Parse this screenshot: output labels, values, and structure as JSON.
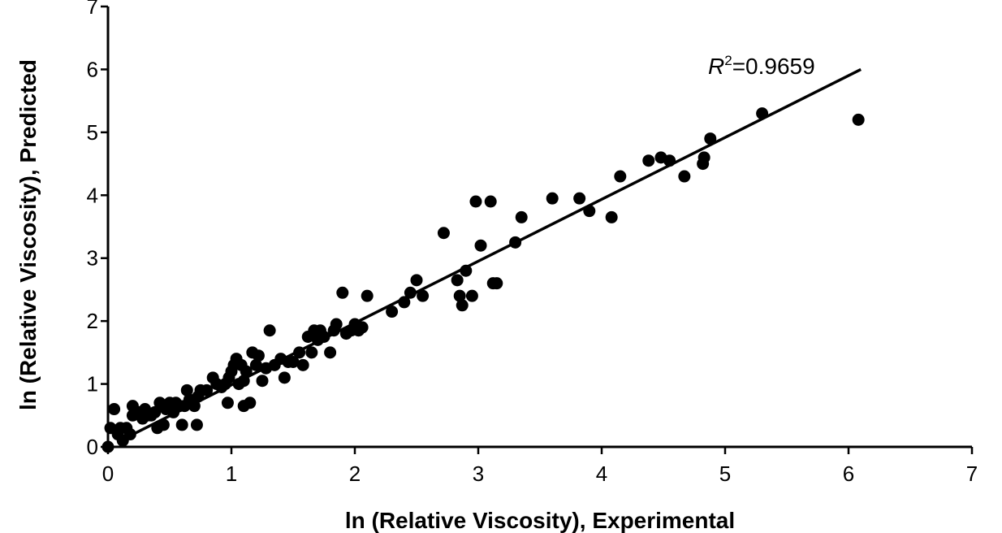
{
  "chart_data": {
    "type": "scatter",
    "xlabel": "ln (Relative Viscosity), Experimental",
    "ylabel": "ln (Relative Viscosity), Predicted",
    "xlim": [
      0,
      7
    ],
    "ylim": [
      0,
      7
    ],
    "xticks": [
      "0",
      "1",
      "2",
      "3",
      "4",
      "5",
      "6",
      "7"
    ],
    "yticks": [
      "0",
      "1",
      "2",
      "3",
      "4",
      "5",
      "6",
      "7"
    ],
    "grid": false,
    "legend": "none",
    "annotation": {
      "r_prefix": "R",
      "r_exp": "2",
      "r_value": "=0.9659"
    },
    "fit_line": {
      "x": [
        0.1,
        6.1
      ],
      "y": [
        0.1,
        6.0
      ]
    },
    "marker_color": "#000000",
    "points": [
      [
        0.0,
        0.0
      ],
      [
        0.02,
        0.3
      ],
      [
        0.05,
        0.6
      ],
      [
        0.08,
        0.2
      ],
      [
        0.1,
        0.3
      ],
      [
        0.12,
        0.1
      ],
      [
        0.15,
        0.3
      ],
      [
        0.18,
        0.2
      ],
      [
        0.2,
        0.5
      ],
      [
        0.2,
        0.65
      ],
      [
        0.25,
        0.55
      ],
      [
        0.28,
        0.45
      ],
      [
        0.3,
        0.6
      ],
      [
        0.32,
        0.5
      ],
      [
        0.35,
        0.5
      ],
      [
        0.38,
        0.55
      ],
      [
        0.4,
        0.3
      ],
      [
        0.42,
        0.7
      ],
      [
        0.45,
        0.35
      ],
      [
        0.47,
        0.6
      ],
      [
        0.5,
        0.7
      ],
      [
        0.53,
        0.55
      ],
      [
        0.55,
        0.7
      ],
      [
        0.58,
        0.65
      ],
      [
        0.6,
        0.35
      ],
      [
        0.62,
        0.65
      ],
      [
        0.64,
        0.9
      ],
      [
        0.66,
        0.75
      ],
      [
        0.7,
        0.65
      ],
      [
        0.72,
        0.35
      ],
      [
        0.73,
        0.8
      ],
      [
        0.75,
        0.9
      ],
      [
        0.8,
        0.9
      ],
      [
        0.85,
        1.1
      ],
      [
        0.88,
        1.0
      ],
      [
        0.92,
        0.95
      ],
      [
        0.95,
        1.0
      ],
      [
        0.97,
        0.7
      ],
      [
        0.98,
        1.1
      ],
      [
        1.0,
        1.2
      ],
      [
        1.02,
        1.3
      ],
      [
        1.04,
        1.4
      ],
      [
        1.06,
        1.0
      ],
      [
        1.08,
        1.3
      ],
      [
        1.1,
        1.05
      ],
      [
        1.1,
        0.65
      ],
      [
        1.12,
        1.2
      ],
      [
        1.15,
        0.7
      ],
      [
        1.17,
        1.5
      ],
      [
        1.2,
        1.3
      ],
      [
        1.22,
        1.45
      ],
      [
        1.25,
        1.05
      ],
      [
        1.28,
        1.25
      ],
      [
        1.31,
        1.85
      ],
      [
        1.35,
        1.3
      ],
      [
        1.4,
        1.4
      ],
      [
        1.43,
        1.1
      ],
      [
        1.46,
        1.35
      ],
      [
        1.5,
        1.35
      ],
      [
        1.55,
        1.5
      ],
      [
        1.58,
        1.3
      ],
      [
        1.62,
        1.75
      ],
      [
        1.65,
        1.5
      ],
      [
        1.67,
        1.85
      ],
      [
        1.7,
        1.7
      ],
      [
        1.72,
        1.85
      ],
      [
        1.75,
        1.75
      ],
      [
        1.8,
        1.5
      ],
      [
        1.83,
        1.85
      ],
      [
        1.85,
        1.95
      ],
      [
        1.9,
        2.45
      ],
      [
        1.93,
        1.8
      ],
      [
        1.97,
        1.85
      ],
      [
        2.0,
        1.95
      ],
      [
        2.03,
        1.85
      ],
      [
        2.06,
        1.9
      ],
      [
        2.1,
        2.4
      ],
      [
        2.3,
        2.15
      ],
      [
        2.4,
        2.3
      ],
      [
        2.45,
        2.45
      ],
      [
        2.5,
        2.65
      ],
      [
        2.55,
        2.4
      ],
      [
        2.72,
        3.4
      ],
      [
        2.83,
        2.65
      ],
      [
        2.85,
        2.4
      ],
      [
        2.87,
        2.25
      ],
      [
        2.9,
        2.8
      ],
      [
        2.95,
        2.4
      ],
      [
        2.98,
        3.9
      ],
      [
        3.02,
        3.2
      ],
      [
        3.1,
        3.9
      ],
      [
        3.12,
        2.6
      ],
      [
        3.15,
        2.6
      ],
      [
        3.3,
        3.25
      ],
      [
        3.35,
        3.65
      ],
      [
        3.6,
        3.95
      ],
      [
        3.82,
        3.95
      ],
      [
        3.9,
        3.75
      ],
      [
        4.08,
        3.65
      ],
      [
        4.15,
        4.3
      ],
      [
        4.38,
        4.55
      ],
      [
        4.48,
        4.6
      ],
      [
        4.55,
        4.55
      ],
      [
        4.67,
        4.3
      ],
      [
        4.82,
        4.5
      ],
      [
        4.83,
        4.6
      ],
      [
        4.88,
        4.9
      ],
      [
        5.3,
        5.3
      ],
      [
        6.08,
        5.2
      ]
    ]
  }
}
